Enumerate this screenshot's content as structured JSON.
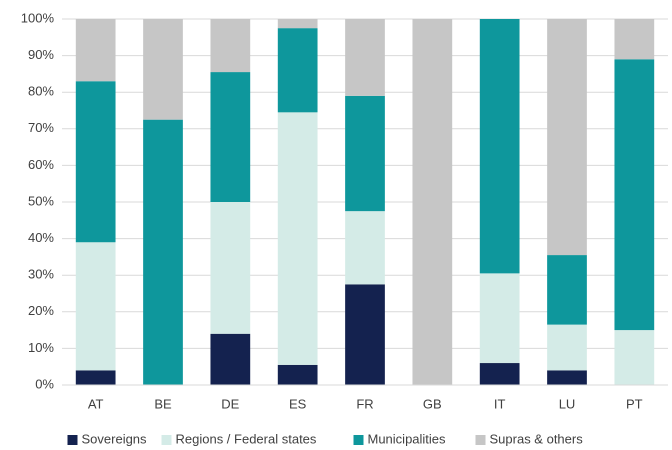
{
  "chart_data": {
    "type": "stacked_bar",
    "categories": [
      "AT",
      "BE",
      "DE",
      "ES",
      "FR",
      "GB",
      "IT",
      "LU",
      "PT"
    ],
    "series": [
      {
        "name": "Sovereigns",
        "color": "#14224f",
        "values": [
          4,
          0,
          14,
          5.5,
          27.5,
          0,
          6,
          4,
          0
        ]
      },
      {
        "name": "Regions / Federal states",
        "color": "#d4ebe7",
        "values": [
          35,
          0,
          36,
          69,
          20,
          0,
          24.5,
          12.5,
          15
        ]
      },
      {
        "name": "Municipalities",
        "color": "#0e979c",
        "values": [
          44,
          72.5,
          35.5,
          23,
          31.5,
          0,
          69.5,
          19,
          74
        ]
      },
      {
        "name": "Supras & others",
        "color": "#c6c6c6",
        "values": [
          17,
          27.5,
          14.5,
          2.5,
          21,
          100,
          0,
          64.5,
          11
        ]
      }
    ],
    "ylim": [
      0,
      100
    ],
    "yticks": [
      {
        "value": 0,
        "label": "0%"
      },
      {
        "value": 10,
        "label": "10%"
      },
      {
        "value": 20,
        "label": "20%"
      },
      {
        "value": 30,
        "label": "30%"
      },
      {
        "value": 40,
        "label": "40%"
      },
      {
        "value": 50,
        "label": "50%"
      },
      {
        "value": 60,
        "label": "60%"
      },
      {
        "value": 70,
        "label": "70%"
      },
      {
        "value": 80,
        "label": "80%"
      },
      {
        "value": 90,
        "label": "90%"
      },
      {
        "value": 100,
        "label": "100%"
      }
    ],
    "grid": true,
    "legend": "bottom"
  }
}
